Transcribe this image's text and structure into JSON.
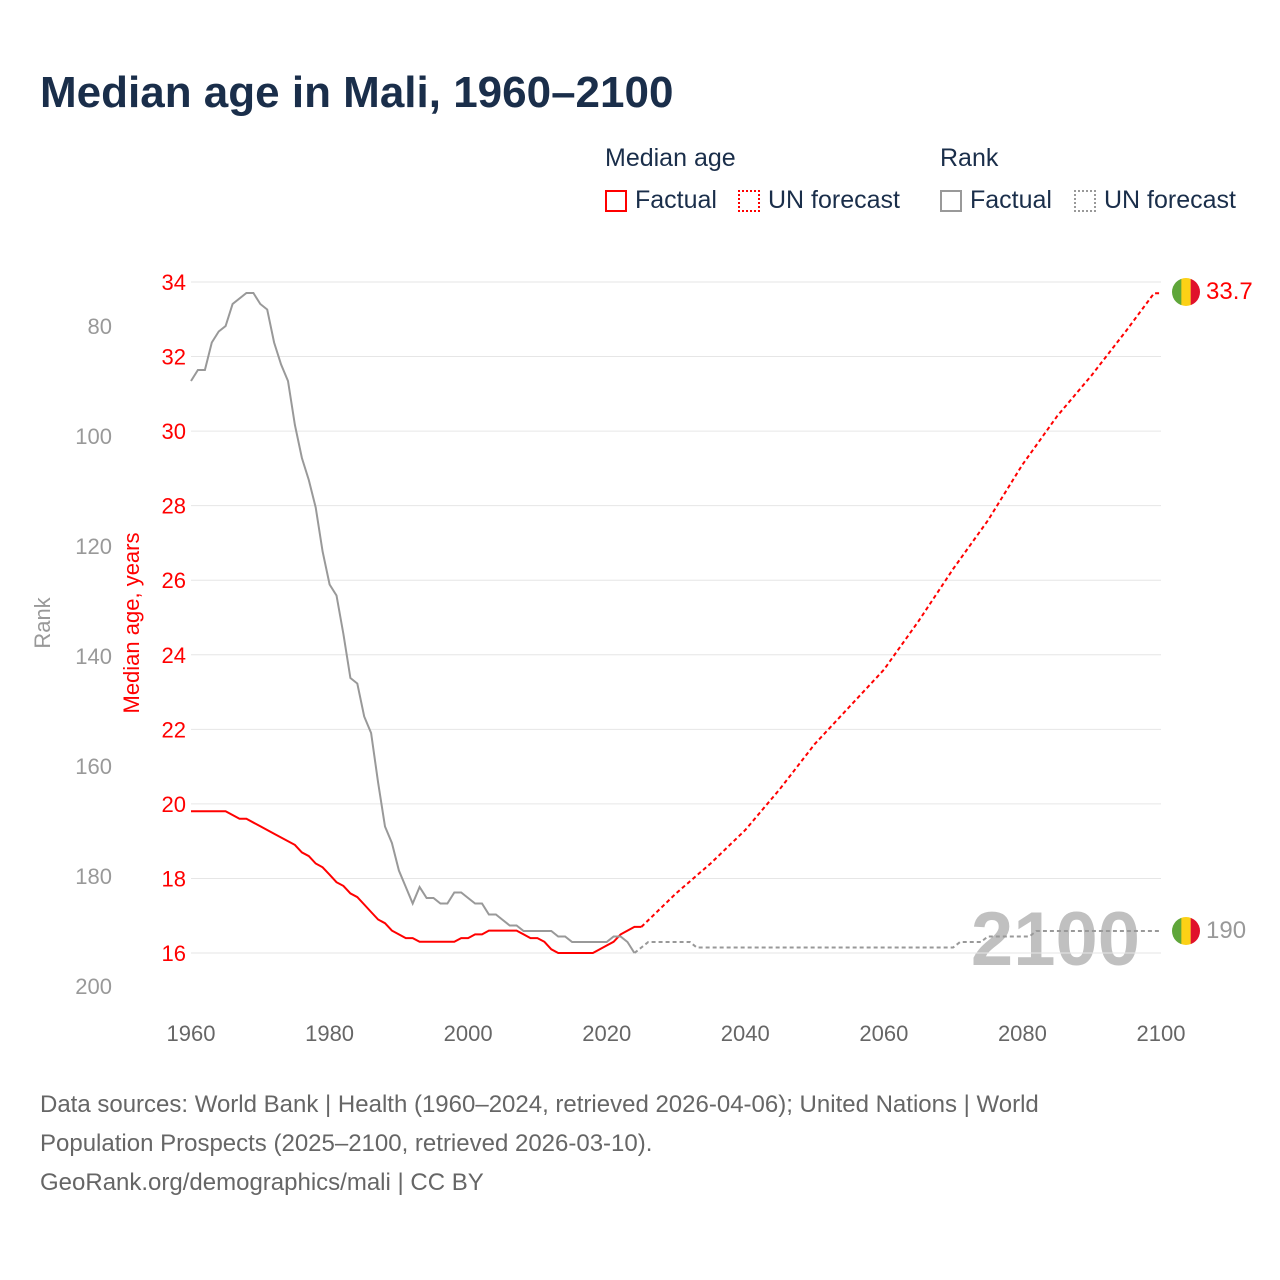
{
  "title": "Median age in Mali, 1960–2100",
  "legend": {
    "median_header": "Median age",
    "rank_header": "Rank",
    "factual": "Factual",
    "forecast": "UN forecast"
  },
  "colors": {
    "median": "#ff0000",
    "rank": "#999999",
    "title": "#1a2e4a",
    "flag": [
      "#5fa63a",
      "#fcd116",
      "#e0112b"
    ]
  },
  "chart_data": {
    "type": "line",
    "title": "Median age in Mali, 1960–2100",
    "xlabel": "",
    "ylabel_left_outer": "Rank",
    "ylabel_left_inner": "Median age, years",
    "x_ticks": [
      1960,
      1980,
      2000,
      2020,
      2040,
      2060,
      2080,
      2100
    ],
    "median_ticks": [
      16,
      18,
      20,
      22,
      24,
      26,
      28,
      30,
      32,
      34
    ],
    "rank_ticks": [
      80,
      100,
      120,
      140,
      160,
      180,
      200
    ],
    "xlim": [
      1960,
      2100
    ],
    "median_ylim": [
      16,
      34
    ],
    "rank_ylim": [
      80,
      200
    ],
    "grid": true,
    "watermark_year": "2100",
    "end_labels": {
      "median": "33.7",
      "rank": "190"
    },
    "series": [
      {
        "name": "Median age – Factual",
        "axis": "median",
        "style": "solid",
        "x": [
          1960,
          1965,
          1967,
          1968,
          1970,
          1972,
          1975,
          1976,
          1977,
          1978,
          1979,
          1980,
          1981,
          1982,
          1983,
          1984,
          1985,
          1986,
          1987,
          1988,
          1989,
          1990,
          1991,
          1992,
          1993,
          1997,
          1998,
          1999,
          2000,
          2001,
          2002,
          2003,
          2007,
          2008,
          2009,
          2010,
          2011,
          2012,
          2013,
          2018,
          2020,
          2021,
          2022,
          2023,
          2024,
          2025
        ],
        "y": [
          19.8,
          19.8,
          19.6,
          19.6,
          19.4,
          19.2,
          18.9,
          18.7,
          18.6,
          18.4,
          18.3,
          18.1,
          17.9,
          17.8,
          17.6,
          17.5,
          17.3,
          17.1,
          16.9,
          16.8,
          16.6,
          16.5,
          16.4,
          16.4,
          16.3,
          16.3,
          16.3,
          16.4,
          16.4,
          16.5,
          16.5,
          16.6,
          16.6,
          16.5,
          16.4,
          16.4,
          16.3,
          16.1,
          16.0,
          16.0,
          16.2,
          16.3,
          16.5,
          16.6,
          16.7,
          16.7
        ]
      },
      {
        "name": "Median age – UN forecast",
        "axis": "median",
        "style": "dashed",
        "x": [
          2025,
          2030,
          2035,
          2040,
          2045,
          2050,
          2055,
          2060,
          2065,
          2070,
          2075,
          2080,
          2085,
          2090,
          2095,
          2099,
          2100
        ],
        "y": [
          16.7,
          17.6,
          18.4,
          19.3,
          20.4,
          21.6,
          22.6,
          23.6,
          24.9,
          26.3,
          27.6,
          29.1,
          30.4,
          31.5,
          32.7,
          33.7,
          33.7
        ]
      },
      {
        "name": "Rank – Factual",
        "axis": "rank",
        "style": "solid",
        "x": [
          1960,
          1961,
          1962,
          1963,
          1964,
          1965,
          1966,
          1968,
          1969,
          1970,
          1971,
          1972,
          1973,
          1974,
          1975,
          1976,
          1977,
          1978,
          1979,
          1980,
          1981,
          1982,
          1983,
          1984,
          1985,
          1986,
          1987,
          1988,
          1989,
          1990,
          1991,
          1992,
          1993,
          1994,
          1995,
          1996,
          1997,
          1998,
          1999,
          2000,
          2001,
          2002,
          2003,
          2004,
          2005,
          2006,
          2007,
          2008,
          2012,
          2013,
          2014,
          2015,
          2020,
          2021,
          2022,
          2023,
          2024
        ],
        "y": [
          90,
          88,
          88,
          83,
          81,
          80,
          76,
          74,
          74,
          76,
          77,
          83,
          87,
          90,
          98,
          104,
          108,
          113,
          121,
          127,
          129,
          136,
          144,
          145,
          151,
          154,
          163,
          171,
          174,
          179,
          182,
          185,
          182,
          184,
          184,
          185,
          185,
          183,
          183,
          184,
          185,
          185,
          187,
          187,
          188,
          189,
          189,
          190,
          190,
          191,
          191,
          192,
          192,
          191,
          191,
          192,
          194
        ]
      },
      {
        "name": "Rank – UN forecast",
        "axis": "rank",
        "style": "dotted",
        "x": [
          2024,
          2025,
          2026,
          2027,
          2032,
          2033,
          2070,
          2071,
          2074,
          2075,
          2081,
          2082,
          2100
        ],
        "y": [
          194,
          193,
          192,
          192,
          192,
          193,
          193,
          192,
          192,
          191,
          191,
          190,
          190
        ]
      }
    ]
  },
  "footer": {
    "line1": "Data sources: World Bank | Health (1960–2024, retrieved 2026-04-06); United Nations | World",
    "line2": "Population Prospects (2025–2100, retrieved 2026-03-10).",
    "line3": "GeoRank.org/demographics/mali | CC BY"
  }
}
